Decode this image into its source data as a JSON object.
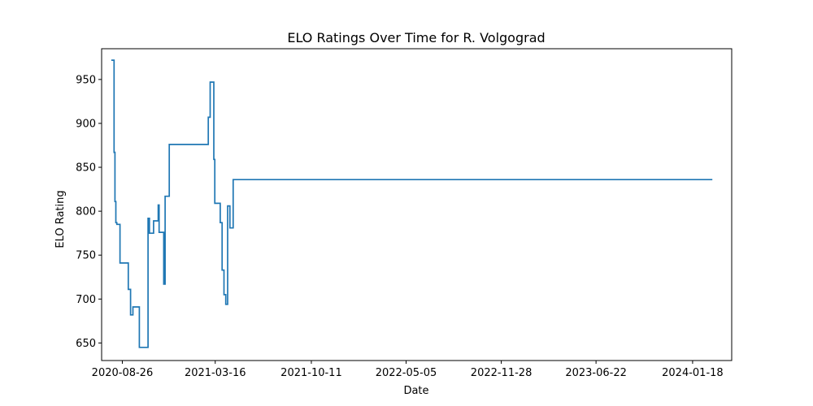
{
  "chart_data": {
    "type": "line",
    "title": "ELO Ratings Over Time for R. Volgograd",
    "xlabel": "Date",
    "ylabel": "ELO Rating",
    "x_ticks": [
      "2020-08-26",
      "2021-03-16",
      "2021-10-11",
      "2022-05-05",
      "2022-11-28",
      "2023-06-22",
      "2024-01-18"
    ],
    "y_ticks": [
      650,
      700,
      750,
      800,
      850,
      900,
      950
    ],
    "xlim": [
      "2020-07-12",
      "2024-04-12"
    ],
    "ylim": [
      630,
      985
    ],
    "grid": false,
    "line_color": "#1f77b4",
    "series": [
      {
        "x": [
          "2020-08-02",
          "2020-08-08",
          "2020-08-10",
          "2020-08-12",
          "2020-08-14",
          "2020-08-17",
          "2020-08-21",
          "2020-09-08",
          "2020-09-13",
          "2020-09-18",
          "2020-09-25",
          "2020-10-02",
          "2020-10-21",
          "2020-10-24",
          "2020-11-02",
          "2020-11-06",
          "2020-11-12",
          "2020-11-14",
          "2020-11-24",
          "2020-11-27",
          "2020-12-06",
          "2020-12-09",
          "2020-12-15",
          "2020-12-19",
          "2020-12-26",
          "2021-03-01",
          "2021-03-05",
          "2021-03-09",
          "2021-03-13",
          "2021-03-15",
          "2021-03-21",
          "2021-03-27",
          "2021-03-31",
          "2021-04-04",
          "2021-04-08",
          "2021-04-12",
          "2021-04-17",
          "2021-04-20",
          "2021-04-24",
          "2021-04-30",
          "2024-03-01"
        ],
        "y": [
          972,
          867,
          811,
          787,
          785,
          785,
          741,
          711,
          682,
          691,
          691,
          645,
          792,
          775,
          789,
          789,
          807,
          776,
          717,
          817,
          876,
          876,
          876,
          876,
          876,
          907,
          947,
          947,
          859,
          809,
          809,
          787,
          733,
          705,
          694,
          806,
          781,
          781,
          836,
          836,
          836
        ]
      }
    ]
  }
}
